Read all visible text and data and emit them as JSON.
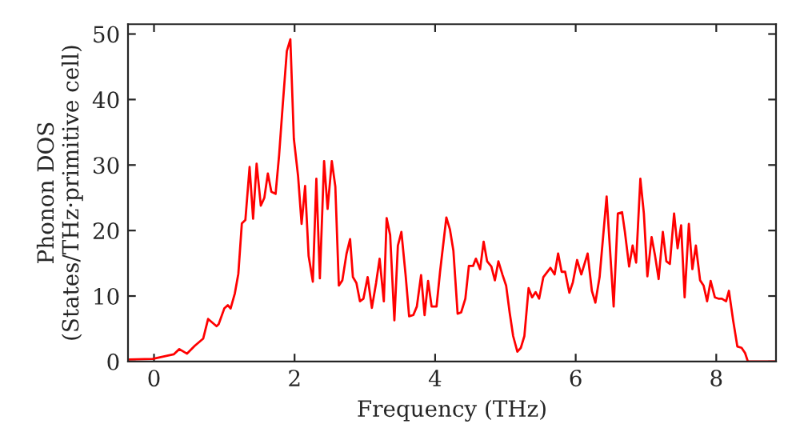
{
  "chart_data": {
    "type": "line",
    "xlabel": "Frequency (THz)",
    "ylabel": "Phonon DOS\n(States/THz·primitive cell)",
    "xlim": [
      -0.37,
      8.85
    ],
    "ylim": [
      0,
      51.5
    ],
    "xticks": [
      0,
      2,
      4,
      6,
      8
    ],
    "yticks": [
      0,
      10,
      20,
      30,
      40,
      50
    ],
    "grid": false,
    "legend": false,
    "marker": "none",
    "line_style": "solid",
    "series": [
      {
        "color": "#ff0000",
        "x": [
          -0.36,
          -0.02,
          0.28,
          0.36,
          0.47,
          0.58,
          0.7,
          0.77,
          0.89,
          0.92,
          1.0,
          1.05,
          1.09,
          1.15,
          1.2,
          1.25,
          1.3,
          1.36,
          1.41,
          1.46,
          1.52,
          1.57,
          1.62,
          1.67,
          1.73,
          1.78,
          1.83,
          1.89,
          1.94,
          1.99,
          2.05,
          2.1,
          2.15,
          2.2,
          2.26,
          2.31,
          2.36,
          2.42,
          2.47,
          2.53,
          2.58,
          2.63,
          2.68,
          2.74,
          2.79,
          2.83,
          2.88,
          2.93,
          2.98,
          3.04,
          3.1,
          3.16,
          3.21,
          3.27,
          3.31,
          3.36,
          3.42,
          3.47,
          3.52,
          3.58,
          3.63,
          3.69,
          3.74,
          3.8,
          3.85,
          3.9,
          3.95,
          4.02,
          4.07,
          4.16,
          4.21,
          4.26,
          4.32,
          4.37,
          4.43,
          4.48,
          4.54,
          4.58,
          4.64,
          4.69,
          4.74,
          4.8,
          4.85,
          4.9,
          4.96,
          5.01,
          5.06,
          5.11,
          5.17,
          5.22,
          5.27,
          5.33,
          5.38,
          5.43,
          5.48,
          5.54,
          5.64,
          5.7,
          5.75,
          5.8,
          5.85,
          5.91,
          5.96,
          6.02,
          6.08,
          6.17,
          6.23,
          6.28,
          6.34,
          6.44,
          6.54,
          6.6,
          6.66,
          6.7,
          6.76,
          6.81,
          6.86,
          6.92,
          6.97,
          7.02,
          7.08,
          7.13,
          7.18,
          7.24,
          7.29,
          7.34,
          7.4,
          7.45,
          7.5,
          7.55,
          7.61,
          7.66,
          7.71,
          7.77,
          7.82,
          7.87,
          7.92,
          7.98,
          8.03,
          8.08,
          8.14,
          8.18,
          8.24,
          8.3,
          8.36,
          8.41,
          8.45,
          8.85
        ],
        "values": [
          0.3,
          0.4,
          1.1,
          1.9,
          1.2,
          2.4,
          3.5,
          6.5,
          5.4,
          5.7,
          8.1,
          8.6,
          8.1,
          10.4,
          13.4,
          21.1,
          21.6,
          29.7,
          21.8,
          30.2,
          23.8,
          25.0,
          28.7,
          25.9,
          25.6,
          31.5,
          38.9,
          47.4,
          49.2,
          34.0,
          28.3,
          21.0,
          26.8,
          16.1,
          12.2,
          27.9,
          12.7,
          30.6,
          23.3,
          30.6,
          26.7,
          11.6,
          12.4,
          16.5,
          18.7,
          12.9,
          12.0,
          9.2,
          9.6,
          12.9,
          8.2,
          12.0,
          15.7,
          9.2,
          21.9,
          19.3,
          6.3,
          17.7,
          19.8,
          13.2,
          6.9,
          7.1,
          8.4,
          13.2,
          7.1,
          12.3,
          8.4,
          8.4,
          13.7,
          22.0,
          20.2,
          16.9,
          7.3,
          7.5,
          9.6,
          14.6,
          14.6,
          15.7,
          14.1,
          18.3,
          15.3,
          14.5,
          12.4,
          15.3,
          13.2,
          11.6,
          7.5,
          3.9,
          1.5,
          2.1,
          3.9,
          11.2,
          9.8,
          10.6,
          9.6,
          12.9,
          14.3,
          13.3,
          16.5,
          13.7,
          13.7,
          10.5,
          12.1,
          15.5,
          13.3,
          16.5,
          10.8,
          9.0,
          12.9,
          25.2,
          8.4,
          22.6,
          22.8,
          19.8,
          14.5,
          17.7,
          15.1,
          27.9,
          22.6,
          13.0,
          19.0,
          16.1,
          12.6,
          19.8,
          15.3,
          14.9,
          22.6,
          17.3,
          20.8,
          9.8,
          21.0,
          14.1,
          17.7,
          12.4,
          11.6,
          9.2,
          12.3,
          9.8,
          9.6,
          9.6,
          9.2,
          10.8,
          6.3,
          2.3,
          2.1,
          1.3,
          0,
          0
        ]
      }
    ]
  }
}
